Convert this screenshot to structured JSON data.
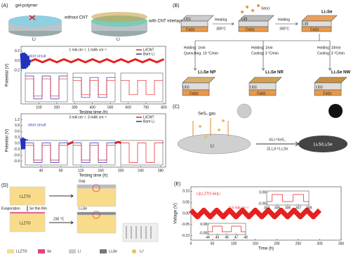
{
  "panels": {
    "a": {
      "label": "(A)",
      "gel_polymer": "gel-polymer",
      "without_cnt": "without CNT",
      "with_cnt": "with CNT interlayer",
      "li_left": "Li",
      "li_right": "Li"
    },
    "b": {
      "label": "(B)",
      "li_s": "Li(s)",
      "cu_s1": "Cu(s)",
      "heating": "Heating",
      "temp1": "300°C",
      "se_v": "Se(v)",
      "li_l": "Li(l)",
      "cu_s2": "Cu(s)",
      "holding": "Holding",
      "temp2": "300°C",
      "li2se": "Li₂Se",
      "li_l2": "Li(l)",
      "cu_s3": "Cu(s)",
      "routes": [
        {
          "holding": "Holding: 1min",
          "rate": "Quenching: 10 °C/min",
          "product": "Li₂Se NP",
          "li": "Li(s)",
          "cu": "Cu(s)"
        },
        {
          "holding": "Holding: 1min",
          "rate": "Cooling: 3 °C/min",
          "product": "Li₂Se NR",
          "li": "Li(s)",
          "cu": "Cu(s)"
        },
        {
          "holding": "Holding: 10min",
          "rate": "Cooling: 3 °C/min",
          "product": "Li₂Se NW",
          "li": "Li(s)",
          "cu": "Cu(s)"
        }
      ]
    },
    "c": {
      "label": "(C)",
      "gas": "SeS₂ gas",
      "li": "Li",
      "eq_top": "6Li+SeS₂",
      "eq_bottom": "2Li₂S+Li₂Se",
      "product": "Li₂S/Li₂Se"
    },
    "d": {
      "label": "(D)",
      "llzto1": "LLZTO",
      "gap": "Gap",
      "evaporation": "Evaporation",
      "se_film": "Se thin film",
      "llzto2": "LLZTO",
      "li2se": "Li₂Se",
      "temp": "230 °C",
      "legend": [
        "LLZTO",
        "Se",
        "Li",
        "Li₂Se",
        "Li⁺"
      ]
    },
    "e": {
      "label": "(E)"
    }
  },
  "chart_data": [
    {
      "type": "line",
      "annotation": "1 mA cm⁻², 1 mAh cm⁻²",
      "callout": "short circuit",
      "y_label": "Potential (V)",
      "x_label": "Testing time (h)",
      "xlim": [
        0,
        810
      ],
      "xticks": [
        100,
        200,
        300,
        400,
        500,
        600,
        700,
        800
      ],
      "ylim": [
        -0.9,
        0.3
      ],
      "yticks": [
        0.2,
        {
          "value": 0,
          "label": "0.0"
        },
        -0.2
      ],
      "legend": "upper right",
      "series": [
        {
          "name": "Li/CNT",
          "color": "#e62020",
          "x": [
            0,
            40,
            80,
            120,
            160,
            200,
            240,
            280,
            320,
            360,
            400,
            440,
            480,
            520,
            560,
            600,
            640,
            680,
            720,
            760,
            800
          ],
          "values": [
            0.03,
            -0.03,
            0.03,
            -0.03,
            0.03,
            -0.03,
            0.03,
            -0.03,
            0.03,
            -0.03,
            0.03,
            -0.03,
            0.03,
            -0.03,
            0.03,
            -0.03,
            0.03,
            -0.03,
            0.03,
            -0.03,
            0.03
          ]
        },
        {
          "name": "Bare Li",
          "color": "#2233bb",
          "x": [
            0,
            5,
            10,
            15,
            20,
            25,
            30,
            35,
            40,
            45,
            50
          ],
          "values": [
            0.15,
            -0.15,
            0.15,
            -0.15,
            0.15,
            -0.15,
            0.12,
            -0.12,
            0.08,
            -0.08,
            0.02
          ]
        }
      ],
      "insets": [
        {
          "xlim": [
            0,
            5
          ],
          "ylim": [
            -0.1,
            0.1
          ],
          "series": [
            {
              "color": "#2233bb",
              "x": [
                0,
                1,
                1,
                2,
                2,
                3,
                3,
                4,
                4,
                5
              ],
              "values": [
                0.08,
                0.08,
                -0.08,
                -0.08,
                0.08,
                0.08,
                -0.08,
                -0.08,
                0.08,
                0.08
              ]
            },
            {
              "color": "#e62020",
              "x": [
                0,
                1,
                1,
                2,
                2,
                3,
                3,
                4,
                4,
                5
              ],
              "values": [
                0.06,
                0.06,
                -0.06,
                -0.06,
                0.06,
                0.06,
                -0.06,
                -0.06,
                0.06,
                0.06
              ]
            }
          ]
        },
        {
          "xlim": [
            0,
            5
          ],
          "ylim": [
            -0.1,
            0.1
          ],
          "series": [
            {
              "color": "#2233bb",
              "x": [
                0,
                1,
                1,
                2,
                2,
                3,
                3,
                4,
                4,
                5
              ],
              "values": [
                0.07,
                0.07,
                -0.07,
                -0.07,
                0.07,
                0.07,
                -0.07,
                -0.07,
                0.07,
                0.07
              ]
            },
            {
              "color": "#e62020",
              "x": [
                0,
                1,
                1,
                2,
                2,
                3,
                3,
                4,
                4,
                5
              ],
              "values": [
                0.05,
                0.05,
                -0.05,
                -0.05,
                0.05,
                0.05,
                -0.05,
                -0.05,
                0.05,
                0.05
              ]
            }
          ]
        },
        {
          "xlim": [
            0,
            5
          ],
          "ylim": [
            -0.1,
            0.1
          ],
          "series": [
            {
              "color": "#e62020",
              "x": [
                0,
                1,
                1,
                2,
                2,
                3,
                3,
                4,
                4,
                5
              ],
              "values": [
                0.05,
                0.05,
                -0.05,
                -0.05,
                0.05,
                0.05,
                -0.05,
                -0.05,
                0.05,
                0.05
              ]
            }
          ]
        }
      ]
    },
    {
      "type": "line",
      "annotation": "3 mA cm⁻², 3 mAh cm⁻²",
      "callout": "short circuit",
      "y_label": "Potential (V)",
      "x_label": "Testing time (h)",
      "xlim": [
        0,
        290
      ],
      "xticks": [
        40,
        80,
        120,
        160,
        200,
        240,
        280
      ],
      "ylim": [
        -1.2,
        1.5
      ],
      "yticks": [
        1.2,
        0.9,
        0.6,
        0.3,
        {
          "value": 0,
          "label": "0.0"
        },
        -0.3,
        -0.6,
        -0.9
      ],
      "legend": "upper right",
      "series": [
        {
          "name": "Li/CNT",
          "color": "#e62020",
          "x": [
            15,
            30,
            45,
            60,
            75,
            90,
            105,
            120,
            135,
            150,
            165,
            180,
            195,
            210,
            225,
            240,
            255,
            270,
            285
          ],
          "values": [
            0.08,
            -0.08,
            0.08,
            -0.08,
            0.08,
            -0.08,
            0.08,
            -0.08,
            0.08,
            -0.08,
            0.08,
            -0.08,
            0.08,
            -0.08,
            0.08,
            -0.08,
            0.08,
            -0.08,
            0.08
          ]
        },
        {
          "name": "Bare Li",
          "color": "#2233bb",
          "x": [
            0,
            2,
            4,
            6,
            8,
            10,
            12,
            14,
            16,
            18,
            20
          ],
          "values": [
            0.25,
            -0.25,
            0.25,
            -0.25,
            0.2,
            -0.2,
            0.15,
            -0.15,
            0.1,
            -0.1,
            0.05
          ]
        }
      ],
      "insets": [
        {
          "xlim": [
            0,
            5
          ],
          "ylim": [
            -0.1,
            0.1
          ],
          "series": [
            {
              "color": "#2233bb",
              "x": [
                0,
                1,
                1,
                2,
                2,
                3,
                3,
                4,
                4,
                5
              ],
              "values": [
                0.08,
                0.08,
                -0.08,
                -0.08,
                0.08,
                0.08,
                -0.08,
                -0.08,
                0.08,
                0.08
              ]
            },
            {
              "color": "#e62020",
              "x": [
                0,
                1,
                1,
                2,
                2,
                3,
                3,
                4,
                4,
                5
              ],
              "values": [
                0.06,
                0.06,
                -0.06,
                -0.06,
                0.06,
                0.06,
                -0.06,
                -0.06,
                0.06,
                0.06
              ]
            }
          ]
        },
        {
          "xlim": [
            0,
            5
          ],
          "ylim": [
            -0.1,
            0.1
          ],
          "series": [
            {
              "color": "#2233bb",
              "x": [
                0,
                1,
                1,
                2,
                2,
                3,
                3,
                4,
                4,
                5
              ],
              "values": [
                0.08,
                0.08,
                -0.08,
                -0.08,
                0.08,
                0.08,
                -0.08,
                -0.08,
                0.08,
                0.08
              ]
            },
            {
              "color": "#e62020",
              "x": [
                0,
                1,
                1,
                2,
                2,
                3,
                3,
                4,
                4,
                5
              ],
              "values": [
                0.06,
                0.06,
                -0.06,
                -0.06,
                0.06,
                0.06,
                -0.06,
                -0.06,
                0.06,
                0.06
              ]
            }
          ]
        },
        {
          "xlim": [
            0,
            5
          ],
          "ylim": [
            -0.1,
            0.1
          ],
          "series": [
            {
              "color": "#e62020",
              "x": [
                0,
                1,
                1,
                2,
                2,
                3,
                3,
                4,
                4,
                5
              ],
              "values": [
                0.08,
                0.08,
                -0.08,
                -0.08,
                0.08,
                0.08,
                -0.08,
                -0.08,
                0.08,
                0.08
              ]
            }
          ]
        }
      ]
    },
    {
      "type": "line",
      "title": "Li|LLZTO-Se|Li",
      "annotation": "0.5 mA cm⁻²",
      "y_label": "Voltage (V)",
      "x_label": "Time (h)",
      "xlim": [
        0,
        350
      ],
      "xticks": [
        0,
        50,
        100,
        150,
        200,
        250,
        300,
        350
      ],
      "ylim": [
        -0.12,
        0.12
      ],
      "yticks": [
        {
          "value": -0.1,
          "label": "-0.10"
        },
        -0.05,
        {
          "value": 0,
          "label": "0.00"
        },
        0.05,
        {
          "value": 0.1,
          "label": "0.10"
        }
      ],
      "series": [
        {
          "color": "#e62020",
          "x": [
            0,
            15,
            30,
            45,
            60,
            75,
            90,
            105,
            120,
            135,
            150,
            165,
            180,
            195,
            210,
            225,
            240,
            255,
            270,
            285,
            300
          ],
          "values": [
            0.015,
            -0.015,
            0.015,
            -0.015,
            0.015,
            -0.015,
            0.015,
            -0.015,
            0.015,
            -0.015,
            0.015,
            -0.015,
            0.015,
            -0.015,
            0.015,
            -0.015,
            0.015,
            -0.015,
            0.015,
            -0.015,
            0.015
          ]
        }
      ],
      "insets": [
        {
          "xlim": [
            304,
            308
          ],
          "ylim": [
            -0.1,
            0.1
          ],
          "xticks": [
            304,
            305,
            306,
            307,
            308
          ],
          "yticks": [
            0.08,
            -0.08
          ],
          "series": [
            {
              "color": "#e62020",
              "x": [
                304,
                304.5,
                304.5,
                305.5,
                305.5,
                306.5,
                306.5,
                307.5,
                307.5,
                308
              ],
              "values": [
                -0.05,
                -0.05,
                0.05,
                0.05,
                -0.05,
                -0.05,
                0.05,
                0.05,
                -0.05,
                -0.05
              ]
            }
          ]
        },
        {
          "xlim": [
            44,
            48
          ],
          "ylim": [
            -0.1,
            0.1
          ],
          "xticks": [
            44,
            45,
            46,
            47,
            48
          ],
          "yticks": [
            0.08,
            -0.08
          ],
          "series": [
            {
              "color": "#e62020",
              "x": [
                44,
                44.5,
                44.5,
                45.5,
                45.5,
                46.5,
                46.5,
                47.5,
                47.5,
                48
              ],
              "values": [
                -0.05,
                -0.05,
                0.05,
                0.05,
                -0.05,
                -0.05,
                0.05,
                0.05,
                -0.05,
                -0.05
              ]
            }
          ]
        }
      ]
    }
  ]
}
